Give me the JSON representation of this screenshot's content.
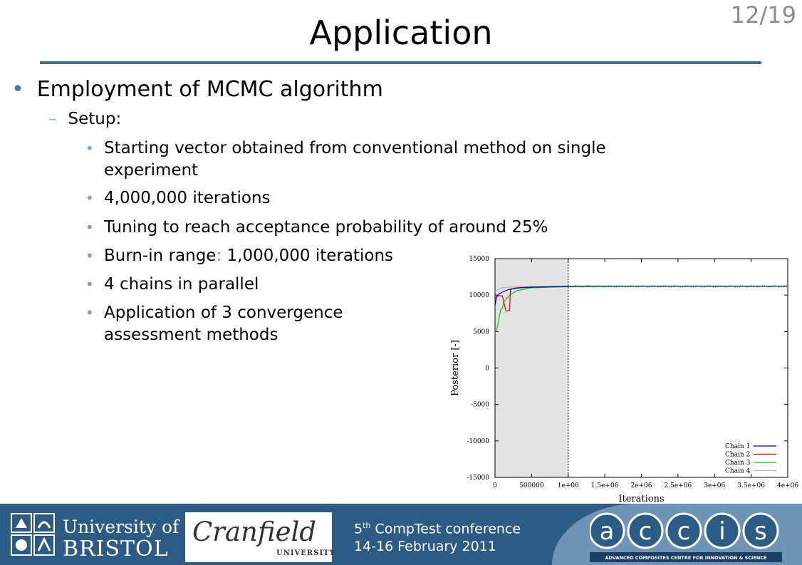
{
  "slide": {
    "title": "Application",
    "number": "12/19"
  },
  "content": {
    "level1": "Employment of MCMC algorithm",
    "level2": "Setup:",
    "items": [
      {
        "text": "Starting vector obtained from conventional method on single experiment"
      },
      {
        "text": "4,000,000 iterations"
      },
      {
        "text": "Tuning to reach acceptance probability of around 25%"
      },
      {
        "prefix": "Burn-in range",
        "colon": ":",
        "suffix": " 1,000,000 iterations"
      },
      {
        "text": "4 chains in parallel"
      },
      {
        "text": "Application of 3 convergence assessment methods"
      }
    ],
    "items_wrap": [
      "Application of 3 convergence",
      "assessment methods"
    ]
  },
  "chart_data": {
    "type": "line",
    "xlabel": "Iterations",
    "ylabel": "Posterior [-]",
    "xlim": [
      0,
      4000000
    ],
    "ylim": [
      -15000,
      15000
    ],
    "x_ticks": [
      "0",
      "500000",
      "1e+06",
      "1.5e+06",
      "2e+06",
      "2.5e+06",
      "3e+06",
      "3.5e+06",
      "4e+06"
    ],
    "y_ticks": [
      "15000",
      "10000",
      "5000",
      "0",
      "-5000",
      "-10000",
      "-15000"
    ],
    "burn_in": [
      0,
      1000000
    ],
    "legend_position": "bottom-right",
    "series": [
      {
        "name": "Chain 1",
        "color": "#0000cc",
        "x": [
          0,
          20000,
          60000,
          120000,
          200000,
          350000,
          600000,
          1000000,
          2000000,
          3000000,
          4000000
        ],
        "y": [
          8500,
          9800,
          10200,
          10500,
          10800,
          11000,
          11100,
          11200,
          11200,
          11200,
          11200
        ]
      },
      {
        "name": "Chain 2",
        "color": "#dd0000",
        "x": [
          0,
          40000,
          100000,
          150000,
          160000,
          200000,
          210000,
          300000,
          500000,
          1000000,
          2000000,
          4000000
        ],
        "y": [
          9500,
          9900,
          9900,
          7800,
          7800,
          7900,
          10800,
          11000,
          11100,
          11200,
          11200,
          11200
        ]
      },
      {
        "name": "Chain 3",
        "color": "#00cc00",
        "x": [
          0,
          20000,
          40000,
          60000,
          80000,
          100000,
          120000,
          150000,
          200000,
          300000,
          500000,
          1000000,
          2000000,
          4000000
        ],
        "y": [
          4800,
          5200,
          6000,
          7200,
          8000,
          8200,
          9000,
          9400,
          10000,
          10600,
          11000,
          11150,
          11200,
          11200
        ]
      },
      {
        "name": "Chain 4",
        "color": "#b8b8b8",
        "x": [
          0,
          50000,
          100000,
          200000,
          400000,
          700000,
          1000000,
          2000000,
          4000000
        ],
        "y": [
          10500,
          10800,
          11000,
          11100,
          11150,
          11200,
          11200,
          11200,
          11200
        ]
      }
    ]
  },
  "footer": {
    "bristol_line1": "University of",
    "bristol_line2": "BRISTOL",
    "cranfield_name": "Cranfield",
    "cranfield_sub": "UNIVERSITY",
    "conf_num": "5",
    "conf_sup": "th",
    "conf_line1_rest": " CompTest conference",
    "conf_line2": "14-16 February 2011",
    "accis_letters": [
      "a",
      "c",
      "c",
      "i",
      "s"
    ],
    "accis_tagline": "ADVANCED COMPOSITES CENTRE FOR INNOVATION & SCIENCE"
  },
  "colors": {
    "accent": "#3d6f99",
    "footer_dark": "#2c5b85",
    "footer_light": "#6f94b8"
  }
}
